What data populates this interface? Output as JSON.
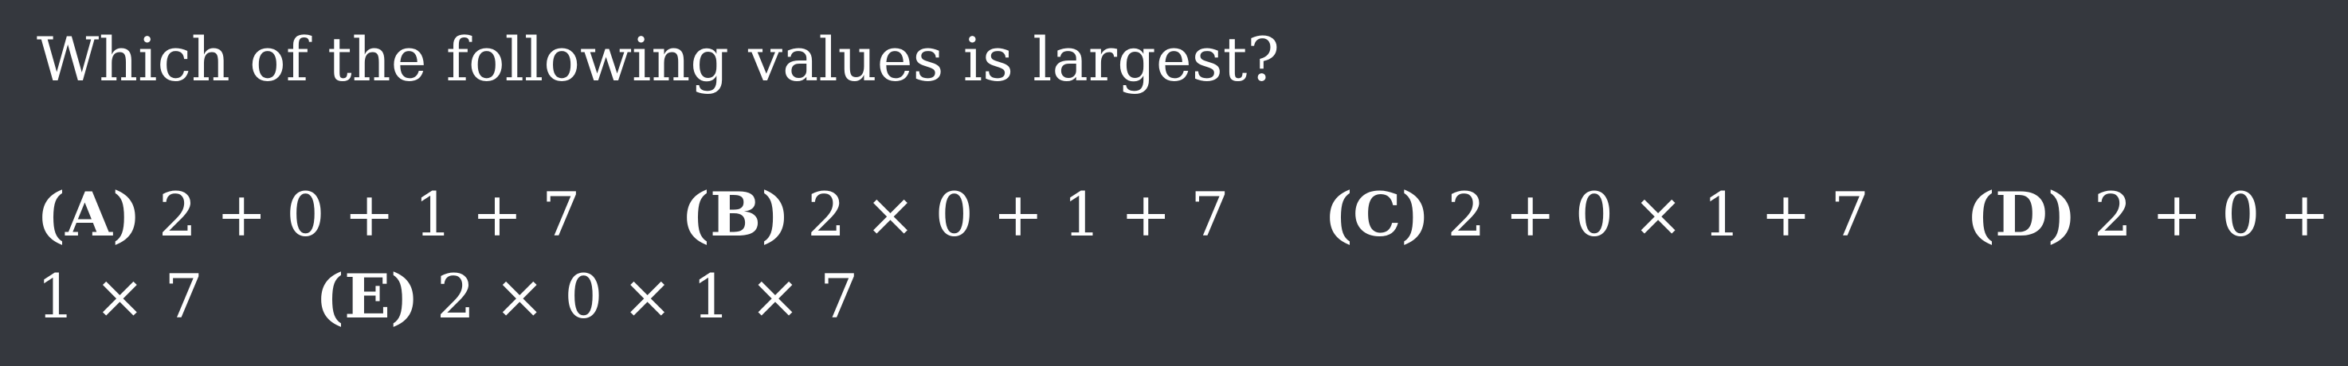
{
  "question": "Which of the following values is largest?",
  "choices": [
    {
      "label": "(A)",
      "expression": "2 + 0 + 1 + 7"
    },
    {
      "label": "(B)",
      "expression": "2 × 0 + 1 + 7"
    },
    {
      "label": "(C)",
      "expression": "2 + 0 × 1 + 7"
    },
    {
      "label": "(D)",
      "expression_line1": "2 + 0 +",
      "expression_line2": "1 × 7"
    },
    {
      "label": "(E)",
      "expression": "2 × 0 × 1 × 7"
    }
  ]
}
